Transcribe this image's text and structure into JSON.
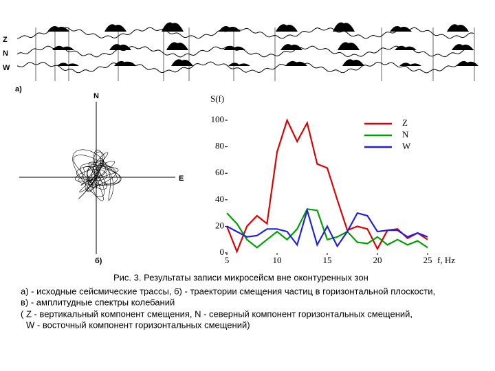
{
  "panel_a": {
    "label": "а)",
    "traces": [
      "Z",
      "N",
      "W"
    ]
  },
  "panel_b": {
    "label": "б)",
    "north": "N",
    "east": "E"
  },
  "chart_data": {
    "type": "line",
    "ylabel": "S(f)",
    "xlabel": "f, Hz",
    "xlim": [
      5,
      25
    ],
    "ylim": [
      0,
      100
    ],
    "xticks": [
      5,
      10,
      15,
      20,
      25
    ],
    "yticks": [
      0,
      20,
      40,
      60,
      80,
      100
    ],
    "legend": "upper right",
    "x": [
      5,
      6,
      7,
      8,
      9,
      10,
      11,
      12,
      13,
      14,
      15,
      16,
      17,
      18,
      19,
      20,
      21,
      22,
      23,
      24,
      25
    ],
    "series": [
      {
        "name": "Z",
        "color": "#e00000",
        "values": [
          20,
          1,
          20,
          28,
          22,
          76,
          100,
          84,
          98,
          67,
          64,
          40,
          17,
          20,
          18,
          3,
          17,
          18,
          11,
          15,
          10
        ]
      },
      {
        "name": "N",
        "color": "#00a000",
        "values": [
          30,
          22,
          10,
          4,
          10,
          16,
          10,
          18,
          33,
          32,
          10,
          12,
          16,
          8,
          7,
          12,
          6,
          10,
          6,
          9,
          4
        ]
      },
      {
        "name": "W",
        "color": "#2020e0",
        "values": [
          20,
          16,
          12,
          13,
          18,
          18,
          16,
          6,
          32,
          6,
          20,
          5,
          16,
          30,
          28,
          16,
          17,
          17,
          12,
          15,
          12
        ]
      }
    ]
  },
  "caption": {
    "title": "Рис. 3. Результаты записи микросейсм вне оконтуренных зон",
    "lines": [
      "а) - исходные сейсмические трассы, б) - траектории смещения частиц в горизонтальной плоскости,",
      "в) - амплитудные спектры колебаний",
      "( Z - вертикальный компонент смещения, N - северный компонент горизонтальных смещений,",
      "W - восточный компонент горизонтальных смещений)"
    ]
  }
}
